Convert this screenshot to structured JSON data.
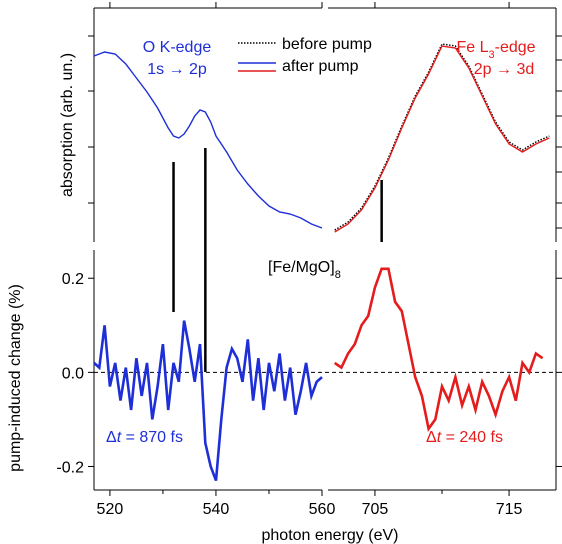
{
  "chart_data": {
    "type": "line",
    "xlabel": "photon energy (eV)",
    "ylabel_top": "absorption (arb. un.)",
    "ylabel_bottom": "pump-induced change (%)",
    "sample_label": "[Fe/MgO]",
    "sample_subscript": "8",
    "panels": {
      "o_kedge": {
        "x_range": [
          517,
          560
        ],
        "x_ticks": [
          "520",
          "540",
          "560"
        ],
        "label_line1": "O K-edge",
        "label_line2": "1s → 2p",
        "delay_symbol": "Δ",
        "delay_t": "t",
        "delay_value": " = 870 fs",
        "color": "#1f2fd8"
      },
      "fe_l3edge": {
        "x_range": [
          701.5,
          718.5
        ],
        "x_ticks": [
          "705",
          "715"
        ],
        "label_line1_main": "Fe L",
        "label_line1_sub": "3",
        "label_line1_tail": "-edge",
        "label_line2": "2p → 3d",
        "delay_symbol": "Δ",
        "delay_t": "t",
        "delay_value": " = 240 fs",
        "color": "#e41c1c"
      }
    },
    "bottom_y_range": [
      -0.25,
      0.26
    ],
    "bottom_y_ticks": [
      "0.2",
      "0.0",
      "-0.2"
    ],
    "legend": {
      "before": "before pump",
      "after": "after pump"
    },
    "series": [
      {
        "name": "before pump",
        "panel": "top",
        "region": "fe",
        "x": [
          702,
          703,
          704,
          705,
          706,
          707,
          708,
          709,
          710,
          711,
          712,
          713,
          714,
          715,
          716,
          717,
          718
        ],
        "y": [
          0.05,
          0.09,
          0.16,
          0.27,
          0.41,
          0.57,
          0.72,
          0.84,
          0.98,
          0.97,
          0.87,
          0.73,
          0.59,
          0.49,
          0.45,
          0.49,
          0.52
        ]
      },
      {
        "name": "after pump",
        "panel": "top",
        "region": "o",
        "x": [
          517,
          519,
          521,
          523,
          525,
          527,
          529,
          531,
          532,
          533,
          534,
          535,
          536,
          537,
          538,
          539,
          540,
          542,
          544,
          546,
          548,
          550,
          552,
          554,
          556,
          558,
          560
        ],
        "y": [
          0.92,
          0.94,
          0.93,
          0.88,
          0.81,
          0.74,
          0.66,
          0.56,
          0.52,
          0.51,
          0.53,
          0.57,
          0.62,
          0.65,
          0.64,
          0.59,
          0.52,
          0.44,
          0.35,
          0.28,
          0.22,
          0.17,
          0.14,
          0.13,
          0.11,
          0.08,
          0.06
        ]
      },
      {
        "name": "after pump",
        "panel": "top",
        "region": "fe",
        "x": [
          702,
          703,
          704,
          705,
          706,
          707,
          708,
          709,
          710,
          711,
          712,
          713,
          714,
          715,
          716,
          717,
          718
        ],
        "y": [
          0.04,
          0.08,
          0.15,
          0.26,
          0.4,
          0.56,
          0.71,
          0.83,
          0.97,
          0.96,
          0.86,
          0.72,
          0.58,
          0.48,
          0.44,
          0.48,
          0.51
        ]
      },
      {
        "name": "O K-edge pump-induced change",
        "panel": "bottom",
        "region": "o",
        "x": [
          517,
          518,
          519,
          520,
          521,
          522,
          523,
          524,
          525,
          526,
          527,
          528,
          529,
          530,
          531,
          532,
          533,
          534,
          535,
          536,
          537,
          538,
          539,
          540,
          541,
          542,
          543,
          544,
          545,
          546,
          547,
          548,
          549,
          550,
          551,
          552,
          553,
          554,
          555,
          556,
          557,
          558,
          559,
          560
        ],
        "y": [
          0.02,
          0.01,
          0.1,
          -0.03,
          0.02,
          -0.06,
          0.01,
          -0.08,
          0.03,
          -0.05,
          0.02,
          -0.1,
          -0.03,
          0.06,
          -0.08,
          0.02,
          -0.02,
          0.11,
          0.05,
          -0.02,
          0.06,
          -0.15,
          -0.2,
          -0.23,
          -0.1,
          0.01,
          0.05,
          0.03,
          -0.02,
          0.07,
          -0.06,
          0.03,
          -0.08,
          0.02,
          -0.04,
          0.04,
          -0.06,
          0.01,
          -0.09,
          -0.04,
          0.02,
          -0.05,
          -0.02,
          -0.01
        ]
      },
      {
        "name": "Fe L3-edge pump-induced change",
        "panel": "bottom",
        "region": "fe",
        "x": [
          702,
          702.5,
          703,
          703.5,
          704,
          704.5,
          705,
          705.5,
          706,
          706.5,
          707,
          707.5,
          708,
          708.5,
          709,
          709.5,
          710,
          710.5,
          711,
          711.5,
          712,
          712.5,
          713,
          713.5,
          714,
          714.5,
          715,
          715.5,
          716,
          716.5,
          717,
          717.5
        ],
        "y": [
          0.02,
          0.01,
          0.04,
          0.06,
          0.1,
          0.12,
          0.18,
          0.22,
          0.22,
          0.15,
          0.13,
          0.06,
          -0.01,
          -0.05,
          -0.12,
          -0.1,
          -0.03,
          -0.06,
          -0.01,
          -0.07,
          -0.03,
          -0.08,
          -0.02,
          -0.05,
          -0.09,
          -0.04,
          -0.01,
          -0.06,
          0.02,
          0.0,
          0.04,
          0.03
        ]
      }
    ],
    "markers": {
      "o_lines_x": [
        532,
        538
      ],
      "fe_line_x": 705.5
    }
  }
}
